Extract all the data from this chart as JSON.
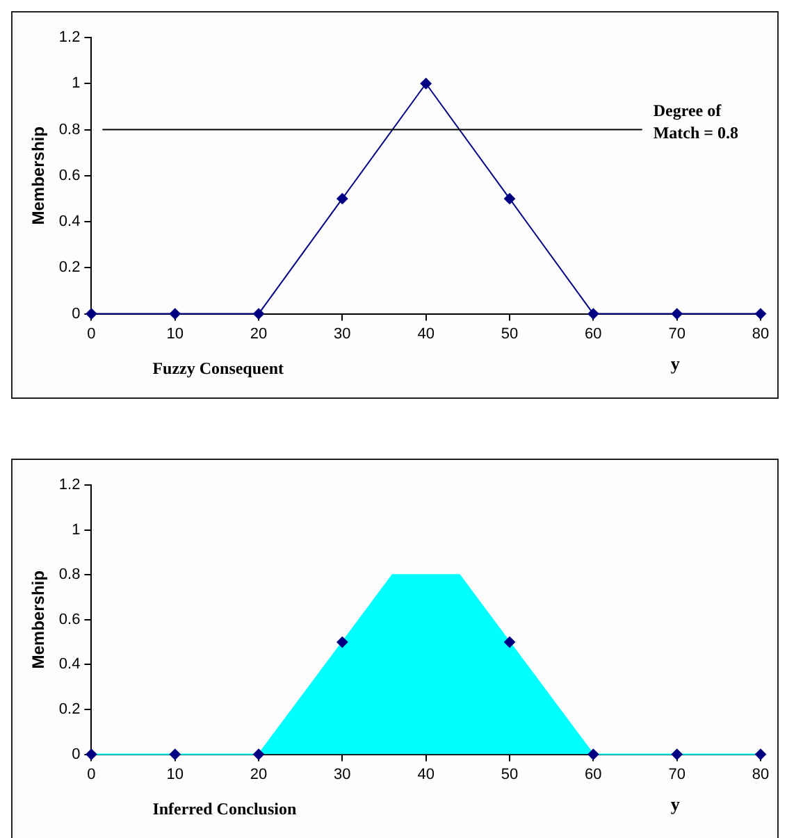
{
  "chart_data": [
    {
      "type": "line",
      "title": "Fuzzy Consequent",
      "xlabel": "y",
      "ylabel": "Membership",
      "x": [
        0,
        10,
        20,
        30,
        40,
        50,
        60,
        70,
        80
      ],
      "series": [
        {
          "color": "#000080",
          "values": [
            0,
            0,
            0,
            0.5,
            1,
            0.5,
            0,
            0,
            0
          ]
        }
      ],
      "xlim": [
        0,
        80
      ],
      "xticks": [
        0,
        10,
        20,
        30,
        40,
        50,
        60,
        70,
        80
      ],
      "ylim": [
        0,
        1.2
      ],
      "yticks": [
        0,
        0.2,
        0.4,
        0.6,
        0.8,
        1,
        1.2
      ],
      "ref_lines": [
        {
          "axis": "y",
          "value": 0.8,
          "label": "Degree of\nMatch = 0.8",
          "color": "#000000"
        }
      ],
      "grid": false,
      "legend": false,
      "marker": "diamond"
    },
    {
      "type": "area",
      "title": "Inferred Conclusion",
      "xlabel": "y",
      "ylabel": "Membership",
      "series": [
        {
          "color": "#00ffff",
          "x": [
            0,
            10,
            20,
            30,
            36,
            44,
            50,
            60,
            70,
            80
          ],
          "values": [
            0,
            0,
            0,
            0.5,
            0.8,
            0.8,
            0.5,
            0,
            0,
            0
          ]
        },
        {
          "type": "scatter",
          "color": "#000080",
          "marker": "diamond",
          "x": [
            0,
            10,
            20,
            30,
            50,
            60,
            70,
            80
          ],
          "values": [
            0,
            0,
            0,
            0.5,
            0.5,
            0,
            0,
            0
          ]
        }
      ],
      "xlim": [
        0,
        80
      ],
      "xticks": [
        0,
        10,
        20,
        30,
        40,
        50,
        60,
        70,
        80
      ],
      "ylim": [
        0,
        1.2
      ],
      "yticks": [
        0,
        0.2,
        0.4,
        0.6,
        0.8,
        1,
        1.2
      ],
      "grid": false,
      "legend": false
    }
  ]
}
